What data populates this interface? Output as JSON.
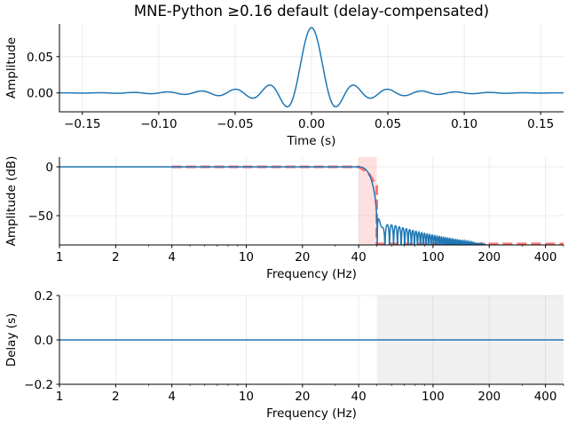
{
  "chart_data": [
    {
      "type": "line",
      "title": "MNE-Python ≥0.16 default (delay-compensated)",
      "xlabel": "Time (s)",
      "ylabel": "Amplitude",
      "xlim": [
        -0.165,
        0.165
      ],
      "ylim": [
        -0.026,
        0.095
      ],
      "xticks": [
        -0.15,
        -0.1,
        -0.05,
        0.0,
        0.05,
        0.1,
        0.15
      ],
      "xtick_labels": [
        "−0.15",
        "−0.10",
        "−0.05",
        "0.00",
        "0.05",
        "0.10",
        "0.15"
      ],
      "yticks": [
        0.0,
        0.05
      ],
      "ytick_labels": [
        "0.00",
        "0.05"
      ],
      "grid": true,
      "series": [
        {
          "kind": "impulse-response",
          "peak": [
            0.0,
            0.09
          ],
          "first_minima": [
            [
              -0.015,
              -0.0196
            ],
            [
              0.015,
              -0.0196
            ]
          ],
          "color": "#1f77b4"
        }
      ]
    },
    {
      "type": "line",
      "xlabel": "Frequency (Hz)",
      "ylabel": "Amplitude (dB)",
      "xscale": "log",
      "xlim": [
        1,
        500
      ],
      "ylim": [
        -80,
        10
      ],
      "xticks": [
        1,
        2,
        4,
        10,
        20,
        40,
        100,
        200,
        400
      ],
      "xtick_labels": [
        "1",
        "2",
        "4",
        "10",
        "20",
        "40",
        "100",
        "200",
        "400"
      ],
      "yticks": [
        -50,
        0
      ],
      "ytick_labels": [
        "−50",
        "0"
      ],
      "grid": true,
      "shaded_band": {
        "x": [
          40,
          50
        ],
        "color": "#ff9999"
      },
      "series": [
        {
          "kind": "actual",
          "passband_db": 0,
          "stopband_peak_db": -53,
          "stopband_floor_reached_hz": 200,
          "color": "#1f77b4"
        },
        {
          "kind": "ideal",
          "style": "dashed",
          "color": "#ff6666",
          "x": [
            4,
            40,
            45,
            50,
            50,
            500
          ],
          "y": [
            0,
            0,
            -6,
            -20,
            -80,
            -80
          ]
        }
      ]
    },
    {
      "type": "line",
      "xlabel": "Frequency (Hz)",
      "ylabel": "Delay (s)",
      "xscale": "log",
      "xlim": [
        1,
        500
      ],
      "ylim": [
        -0.2,
        0.2
      ],
      "xticks": [
        1,
        2,
        4,
        10,
        20,
        40,
        100,
        200,
        400
      ],
      "xtick_labels": [
        "1",
        "2",
        "4",
        "10",
        "20",
        "40",
        "100",
        "200",
        "400"
      ],
      "yticks": [
        -0.2,
        0.0,
        0.2
      ],
      "ytick_labels": [
        "−0.2",
        "0.0",
        "0.2"
      ],
      "grid": true,
      "shaded_band": {
        "x": [
          50,
          500
        ],
        "color": "#f0f0f0"
      },
      "series": [
        {
          "kind": "delay",
          "x": [
            1,
            500
          ],
          "y": [
            0.0,
            0.0
          ],
          "color": "#1f77b4"
        }
      ]
    }
  ]
}
